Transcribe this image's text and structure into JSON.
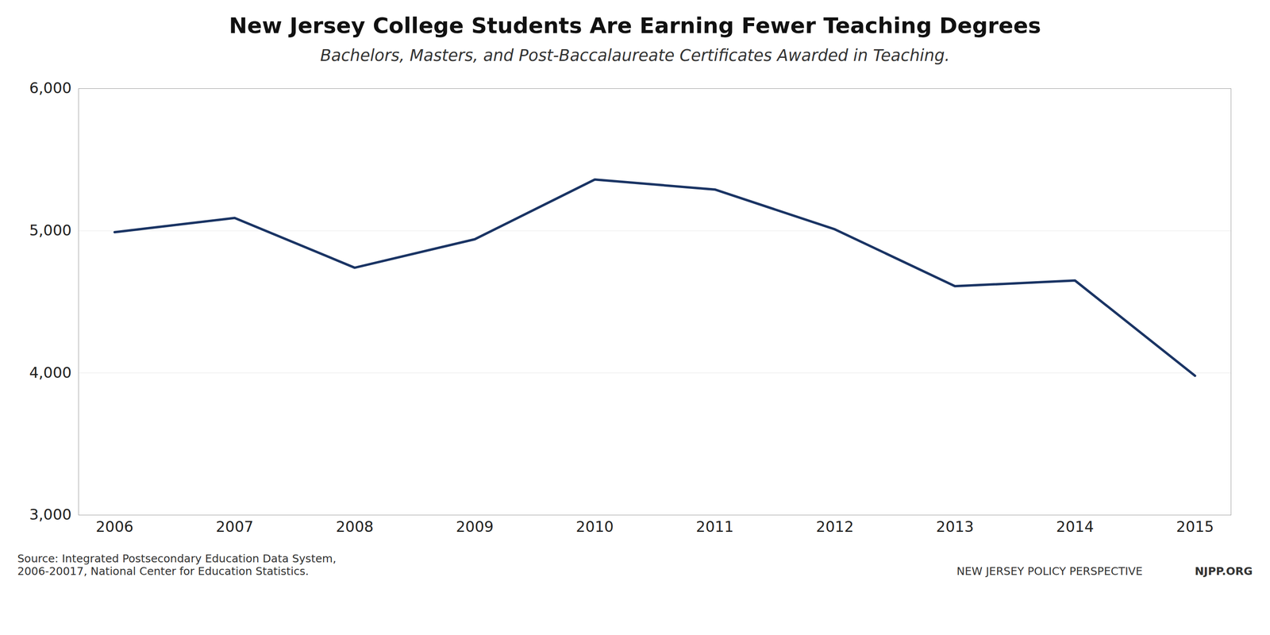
{
  "chart_data": {
    "type": "line",
    "title": "New Jersey College Students Are Earning Fewer Teaching Degrees",
    "subtitle": "Bachelors, Masters, and Post-Baccalaureate Certificates Awarded in Teaching.",
    "x": [
      2006,
      2007,
      2008,
      2009,
      2010,
      2011,
      2012,
      2013,
      2014,
      2015
    ],
    "values": [
      4990,
      5090,
      4740,
      4940,
      5360,
      5290,
      5010,
      4610,
      4650,
      3980
    ],
    "color": "#1a3464",
    "xlim": [
      2005.7,
      2015.3
    ],
    "xticks": [
      2006,
      2007,
      2008,
      2009,
      2010,
      2011,
      2012,
      2013,
      2014,
      2015
    ],
    "ylim": [
      3000,
      6000
    ],
    "yticks": [
      {
        "value": 3000,
        "label": "3,000"
      },
      {
        "value": 4000,
        "label": "4,000"
      },
      {
        "value": 5000,
        "label": "5,000"
      },
      {
        "value": 6000,
        "label": "6,000"
      }
    ],
    "grid": true,
    "source": "Source: Integrated Postsecondary Education Data System,\n2006-20017, National Center for Education Statistics.",
    "credit": "NEW JERSEY POLICY PERSPECTIVE",
    "url": "NJPP.ORG"
  }
}
